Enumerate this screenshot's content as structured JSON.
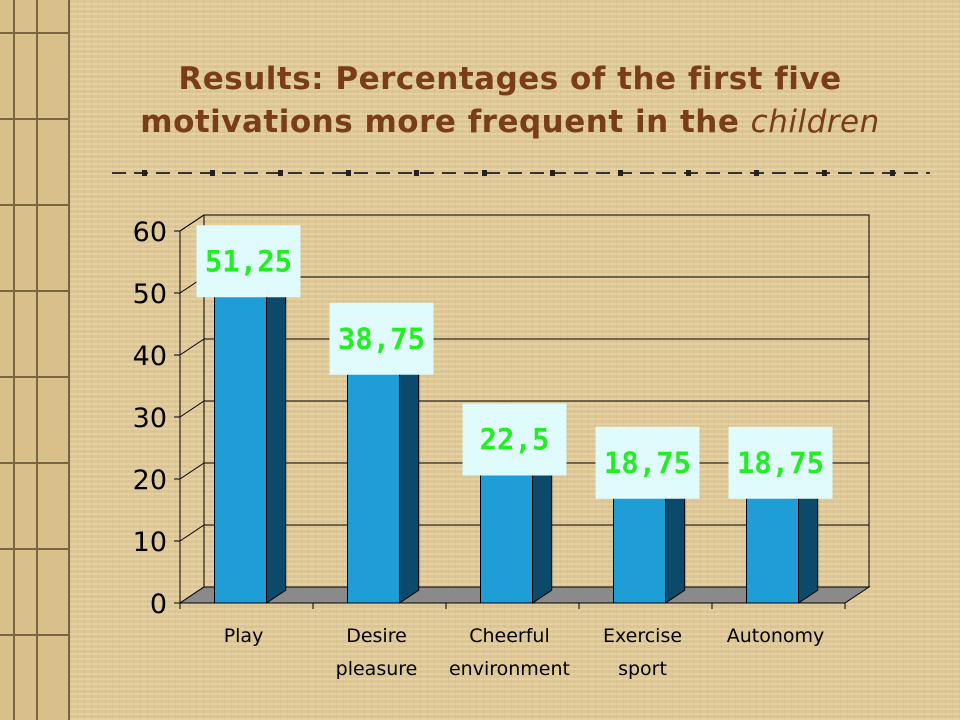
{
  "slide": {
    "title_line1": "Results: Percentages of the first five",
    "title_line2_prefix": "motivations more frequent in the ",
    "title_line2_em": "children"
  },
  "colors": {
    "background": "#e3cc9b",
    "title": "#7a3d1a",
    "bar_front": "#1f9dd6",
    "bar_side": "#0b4a6a",
    "label_box": "#e0fbfb",
    "label_text": "#22ee22"
  },
  "chart_data": {
    "type": "bar",
    "title": "",
    "xlabel": "",
    "ylabel": "",
    "categories": [
      [
        "Play"
      ],
      [
        "Desire",
        "pleasure"
      ],
      [
        "Cheerful",
        "environment"
      ],
      [
        "Exercise",
        "sport"
      ],
      [
        "Autonomy"
      ]
    ],
    "values": [
      51.25,
      38.75,
      22.5,
      18.75,
      18.75
    ],
    "data_labels": [
      "51,25",
      "38,75",
      "22,5",
      "18,75",
      "18,75"
    ],
    "ylim": [
      0,
      60
    ],
    "yticks": [
      "0",
      "10",
      "20",
      "30",
      "40",
      "50",
      "60"
    ],
    "grid": true,
    "style": "3d"
  }
}
